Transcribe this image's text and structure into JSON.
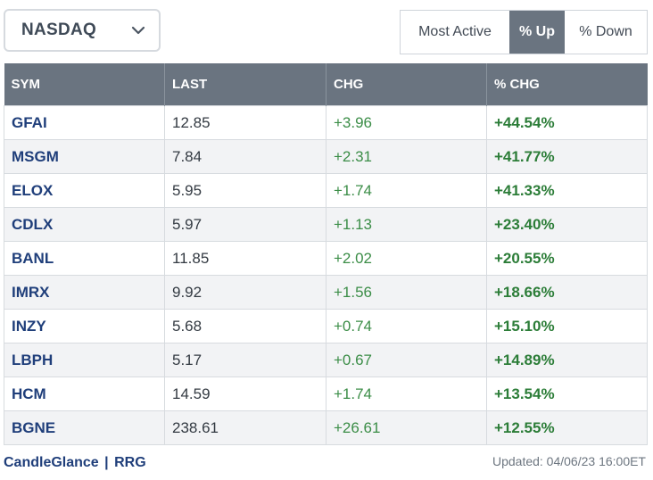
{
  "exchange": {
    "selected": "NASDAQ"
  },
  "tabs": [
    {
      "label": "Most Active",
      "active": false
    },
    {
      "label": "% Up",
      "active": true
    },
    {
      "label": "% Down",
      "active": false
    }
  ],
  "table": {
    "headers": [
      "SYM",
      "LAST",
      "CHG",
      "% CHG"
    ],
    "rows": [
      {
        "sym": "GFAI",
        "last": "12.85",
        "chg": "+3.96",
        "pct": "+44.54%"
      },
      {
        "sym": "MSGM",
        "last": "7.84",
        "chg": "+2.31",
        "pct": "+41.77%"
      },
      {
        "sym": "ELOX",
        "last": "5.95",
        "chg": "+1.74",
        "pct": "+41.33%"
      },
      {
        "sym": "CDLX",
        "last": "5.97",
        "chg": "+1.13",
        "pct": "+23.40%"
      },
      {
        "sym": "BANL",
        "last": "11.85",
        "chg": "+2.02",
        "pct": "+20.55%"
      },
      {
        "sym": "IMRX",
        "last": "9.92",
        "chg": "+1.56",
        "pct": "+18.66%"
      },
      {
        "sym": "INZY",
        "last": "5.68",
        "chg": "+0.74",
        "pct": "+15.10%"
      },
      {
        "sym": "LBPH",
        "last": "5.17",
        "chg": "+0.67",
        "pct": "+14.89%"
      },
      {
        "sym": "HCM",
        "last": "14.59",
        "chg": "+1.74",
        "pct": "+13.54%"
      },
      {
        "sym": "BGNE",
        "last": "238.61",
        "chg": "+26.61",
        "pct": "+12.55%"
      }
    ]
  },
  "footer": {
    "link1": "CandleGlance",
    "separator": "|",
    "link2": "RRG",
    "updated": "Updated: 04/06/23 16:00ET"
  },
  "colors": {
    "header_bg": "#6a7480",
    "symbol": "#1f3e7a",
    "positive": "#2c7d38"
  }
}
